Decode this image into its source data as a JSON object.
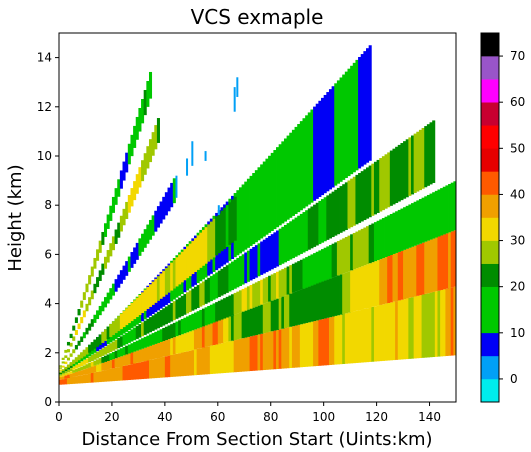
{
  "chart_data": {
    "type": "heatmap",
    "title": "VCS exmaple",
    "xlabel": "Distance From Section Start (Uints:km)",
    "ylabel": "Height (km)",
    "xlim": [
      0,
      150
    ],
    "ylim": [
      0,
      15
    ],
    "xticks": [
      "0",
      "20",
      "40",
      "60",
      "80",
      "100",
      "120",
      "140"
    ],
    "yticks": [
      "0",
      "2",
      "4",
      "6",
      "8",
      "10",
      "12",
      "14"
    ],
    "colorbar": {
      "range": [
        -5,
        75
      ],
      "ticks": [
        "0",
        "10",
        "20",
        "30",
        "40",
        "50",
        "60",
        "70"
      ],
      "bins": [
        {
          "lo": -5,
          "hi": 0,
          "color": "#00ecec"
        },
        {
          "lo": 0,
          "hi": 5,
          "color": "#01a0f6"
        },
        {
          "lo": 5,
          "hi": 10,
          "color": "#0000f6"
        },
        {
          "lo": 10,
          "hi": 15,
          "color": "#00c800"
        },
        {
          "lo": 15,
          "hi": 20,
          "color": "#00c800"
        },
        {
          "lo": 20,
          "hi": 25,
          "color": "#008c00"
        },
        {
          "lo": 25,
          "hi": 30,
          "color": "#a0c800"
        },
        {
          "lo": 30,
          "hi": 35,
          "color": "#f2d800"
        },
        {
          "lo": 35,
          "hi": 40,
          "color": "#f0a000"
        },
        {
          "lo": 40,
          "hi": 45,
          "color": "#ff5a00"
        },
        {
          "lo": 45,
          "hi": 50,
          "color": "#e60000"
        },
        {
          "lo": 50,
          "hi": 55,
          "color": "#ff0000"
        },
        {
          "lo": 55,
          "hi": 60,
          "color": "#c80030"
        },
        {
          "lo": 60,
          "hi": 65,
          "color": "#ff00ff"
        },
        {
          "lo": 65,
          "hi": 70,
          "color": "#9955c9"
        },
        {
          "lo": 70,
          "hi": 75,
          "color": "#000000"
        }
      ]
    },
    "sweeps": [
      {
        "lower_end": [
          150,
          1.9
        ],
        "upper_end": [
          150,
          4.7
        ],
        "lower_start": [
          0,
          0.7
        ],
        "upper_start": [
          0,
          0.9
        ],
        "x_end": 150,
        "base_dbz": 33,
        "spread": 9
      },
      {
        "lower_end": [
          150,
          4.7
        ],
        "upper_end": [
          150,
          7.0
        ],
        "lower_start": [
          0,
          0.9
        ],
        "upper_start": [
          0,
          1.0
        ],
        "x_end": 150,
        "base_dbz": 30,
        "spread": 10
      },
      {
        "lower_end": [
          150,
          7.0
        ],
        "upper_end": [
          150,
          9.0
        ],
        "lower_start": [
          0,
          1.0
        ],
        "upper_start": [
          0,
          1.05
        ],
        "x_end": 150,
        "base_dbz": 22,
        "spread": 9
      },
      {
        "lower_end": [
          150,
          9.4
        ],
        "upper_end": [
          150,
          12.1
        ],
        "lower_start": [
          0,
          1.05
        ],
        "upper_start": [
          0,
          1.1
        ],
        "x_end": 142,
        "base_dbz": 17,
        "spread": 8
      },
      {
        "lower_end": [
          120,
          10.0
        ],
        "upper_end": [
          120,
          14.8
        ],
        "lower_start": [
          0,
          1.1
        ],
        "upper_start": [
          0,
          1.15
        ],
        "x_end": 118,
        "base_dbz": 14,
        "spread": 8
      },
      {
        "lower_end": [
          67,
          6.6
        ],
        "upper_end": [
          67,
          8.4
        ],
        "lower_start": [
          0,
          1.15
        ],
        "upper_start": [
          0,
          1.2
        ],
        "x_end": 67,
        "base_dbz": 20,
        "spread": 14
      },
      {
        "lower_end": [
          43,
          8.0
        ],
        "upper_end": [
          43,
          9.0
        ],
        "lower_start": [
          0,
          1.2
        ],
        "upper_start": [
          0,
          1.25
        ],
        "x_end": 44,
        "base_dbz": 22,
        "spread": 14
      },
      {
        "lower_end": [
          37,
          10.4
        ],
        "upper_end": [
          37,
          11.4
        ],
        "lower_start": [
          0,
          1.25
        ],
        "upper_start": [
          0,
          1.3
        ],
        "x_end": 38,
        "base_dbz": 22,
        "spread": 14
      },
      {
        "lower_end": [
          35,
          12.5
        ],
        "upper_end": [
          35,
          13.6
        ],
        "lower_start": [
          0,
          1.3
        ],
        "upper_start": [
          0,
          1.35
        ],
        "x_end": 35,
        "base_dbz": 20,
        "spread": 14
      }
    ],
    "fragments": [
      {
        "x": 66,
        "y0": 11.8,
        "y1": 12.8,
        "dbz": 2
      },
      {
        "x": 67,
        "y0": 12.4,
        "y1": 13.2,
        "dbz": 2
      },
      {
        "x": 50,
        "y0": 9.6,
        "y1": 10.6,
        "dbz": 2
      },
      {
        "x": 55,
        "y0": 9.8,
        "y1": 10.2,
        "dbz": 2
      },
      {
        "x": 48,
        "y0": 9.2,
        "y1": 9.9,
        "dbz": 2
      },
      {
        "x": 44,
        "y0": 8.3,
        "y1": 9.2,
        "dbz": 2
      },
      {
        "x": 60,
        "y0": 7.6,
        "y1": 8.0,
        "dbz": 2
      }
    ]
  }
}
